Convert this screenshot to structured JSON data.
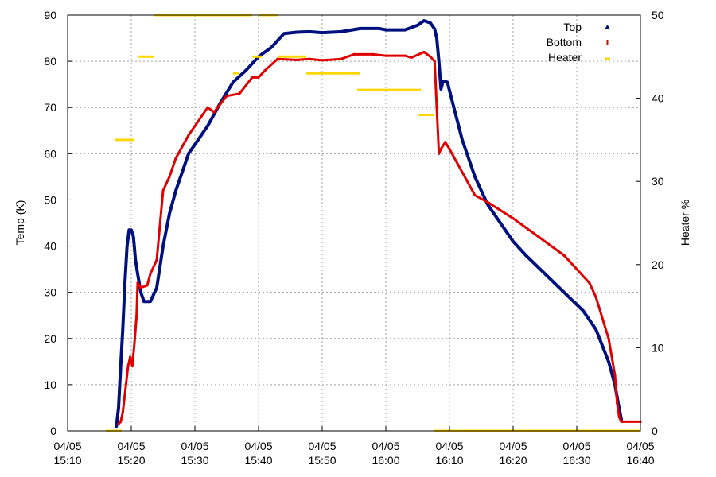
{
  "chart_data": {
    "type": "scatter",
    "title": "",
    "xlabel": "",
    "ylabel": "Temp (K)",
    "y2label": "Heater %",
    "x_range": [
      "15:10",
      "16:40"
    ],
    "ylim": [
      0,
      90
    ],
    "y2lim": [
      0,
      50
    ],
    "grid": true,
    "legend_position": "top-right",
    "x_ticks": [
      {
        "date": "04/05",
        "time": "15:10",
        "t": "15:10"
      },
      {
        "date": "04/05",
        "time": "15:20",
        "t": "15:20"
      },
      {
        "date": "04/05",
        "time": "15:30",
        "t": "15:30"
      },
      {
        "date": "04/05",
        "time": "15:40",
        "t": "15:40"
      },
      {
        "date": "04/05",
        "time": "15:50",
        "t": "15:50"
      },
      {
        "date": "04/05",
        "time": "16:00",
        "t": "16:00"
      },
      {
        "date": "04/05",
        "time": "16:10",
        "t": "16:10"
      },
      {
        "date": "04/05",
        "time": "16:20",
        "t": "16:20"
      },
      {
        "date": "04/05",
        "time": "16:30",
        "t": "16:30"
      },
      {
        "date": "04/05",
        "time": "16:40",
        "t": "16:40"
      }
    ],
    "y_ticks": [
      "0",
      "10",
      "20",
      "30",
      "40",
      "50",
      "60",
      "70",
      "80",
      "90"
    ],
    "y2_ticks": [
      "0",
      "10",
      "20",
      "30",
      "40",
      "50"
    ],
    "series": [
      {
        "name": "Top",
        "color": "#00107e",
        "axis": "y",
        "points": [
          [
            "15:17:40",
            1
          ],
          [
            "15:18:00",
            5
          ],
          [
            "15:18:20",
            14
          ],
          [
            "15:18:40",
            22
          ],
          [
            "15:19:00",
            32
          ],
          [
            "15:19:20",
            40
          ],
          [
            "15:19:40",
            43.5
          ],
          [
            "15:20:00",
            43.5
          ],
          [
            "15:20:20",
            42
          ],
          [
            "15:20:40",
            37
          ],
          [
            "15:21:00",
            34
          ],
          [
            "15:21:30",
            30
          ],
          [
            "15:22:00",
            28
          ],
          [
            "15:23:00",
            28
          ],
          [
            "15:24:00",
            31
          ],
          [
            "15:25:00",
            40
          ],
          [
            "15:26:00",
            47
          ],
          [
            "15:27:00",
            52
          ],
          [
            "15:28:00",
            56
          ],
          [
            "15:29:00",
            60
          ],
          [
            "15:30:00",
            62
          ],
          [
            "15:32:00",
            66
          ],
          [
            "15:34:00",
            71
          ],
          [
            "15:36:00",
            75.5
          ],
          [
            "15:38:00",
            78
          ],
          [
            "15:40:00",
            81
          ],
          [
            "15:42:00",
            83
          ],
          [
            "15:44:00",
            86
          ],
          [
            "15:46:00",
            86.3
          ],
          [
            "15:48:00",
            86.4
          ],
          [
            "15:50:00",
            86.2
          ],
          [
            "15:53:00",
            86.4
          ],
          [
            "15:56:00",
            87.1
          ],
          [
            "15:59:00",
            87.1
          ],
          [
            "16:00:00",
            86.8
          ],
          [
            "16:03:00",
            86.8
          ],
          [
            "16:05:00",
            87.8
          ],
          [
            "16:06:00",
            88.8
          ],
          [
            "16:07:00",
            88.3
          ],
          [
            "16:07:40",
            87
          ],
          [
            "16:08:00",
            85
          ],
          [
            "16:08:20",
            80
          ],
          [
            "16:08:40",
            74
          ],
          [
            "16:09:00",
            75.7
          ],
          [
            "16:09:40",
            75.5
          ],
          [
            "16:10:30",
            71
          ],
          [
            "16:12:00",
            63
          ],
          [
            "16:14:00",
            55
          ],
          [
            "16:16:00",
            49
          ],
          [
            "16:18:00",
            45
          ],
          [
            "16:20:00",
            41
          ],
          [
            "16:22:00",
            38
          ],
          [
            "16:25:00",
            34
          ],
          [
            "16:28:00",
            30
          ],
          [
            "16:31:00",
            26
          ],
          [
            "16:33:00",
            22
          ],
          [
            "16:35:00",
            15
          ],
          [
            "16:36:00",
            10
          ],
          [
            "16:36:30",
            6
          ],
          [
            "16:37:00",
            2.5
          ]
        ]
      },
      {
        "name": "Bottom",
        "color": "#e00000",
        "axis": "y",
        "points": [
          [
            "15:18:00",
            1.5
          ],
          [
            "15:18:20",
            2
          ],
          [
            "15:18:40",
            4
          ],
          [
            "15:19:00",
            8
          ],
          [
            "15:19:30",
            14
          ],
          [
            "15:19:50",
            16
          ],
          [
            "15:20:10",
            14
          ],
          [
            "15:20:30",
            19
          ],
          [
            "15:20:50",
            25
          ],
          [
            "15:21:00",
            32
          ],
          [
            "15:21:30",
            31
          ],
          [
            "15:22:30",
            31.5
          ],
          [
            "15:23:00",
            34
          ],
          [
            "15:24:00",
            37
          ],
          [
            "15:25:00",
            52
          ],
          [
            "15:26:00",
            55
          ],
          [
            "15:27:00",
            59
          ],
          [
            "15:29:00",
            64
          ],
          [
            "15:31:00",
            68
          ],
          [
            "15:32:00",
            70
          ],
          [
            "15:33:00",
            69
          ],
          [
            "15:35:00",
            72.5
          ],
          [
            "15:37:00",
            73
          ],
          [
            "15:39:00",
            76.5
          ],
          [
            "15:40:00",
            76.5
          ],
          [
            "15:41:00",
            78
          ],
          [
            "15:43:00",
            80.5
          ],
          [
            "15:46:00",
            80.3
          ],
          [
            "15:48:00",
            80.5
          ],
          [
            "15:50:00",
            80.2
          ],
          [
            "15:53:00",
            80.5
          ],
          [
            "15:55:00",
            81.5
          ],
          [
            "15:58:00",
            81.5
          ],
          [
            "16:00:00",
            81.2
          ],
          [
            "16:03:00",
            81.2
          ],
          [
            "16:04:00",
            80.8
          ],
          [
            "16:06:00",
            82
          ],
          [
            "16:07:00",
            81
          ],
          [
            "16:07:40",
            80
          ],
          [
            "16:08:00",
            70
          ],
          [
            "16:08:20",
            60
          ],
          [
            "16:08:40",
            61
          ],
          [
            "16:09:20",
            62.5
          ],
          [
            "16:10:00",
            61
          ],
          [
            "16:12:00",
            56
          ],
          [
            "16:14:00",
            51
          ],
          [
            "16:16:00",
            49.5
          ],
          [
            "16:20:00",
            46
          ],
          [
            "16:24:00",
            42
          ],
          [
            "16:28:00",
            38
          ],
          [
            "16:32:00",
            32
          ],
          [
            "16:33:00",
            29
          ],
          [
            "16:35:00",
            20
          ],
          [
            "16:36:00",
            12
          ],
          [
            "16:36:20",
            6
          ],
          [
            "16:36:40",
            3
          ],
          [
            "16:37:00",
            2
          ],
          [
            "16:40:00",
            2
          ]
        ]
      },
      {
        "name": "Heater",
        "color": "#ffd700",
        "axis": "y2",
        "segments": [
          {
            "start": "15:16:00",
            "end": "15:18:30",
            "value": 0
          },
          {
            "start": "15:17:30",
            "end": "15:20:30",
            "value": 35
          },
          {
            "start": "15:21:00",
            "end": "15:23:30",
            "value": 45
          },
          {
            "start": "15:23:30",
            "end": "15:39:00",
            "value": 50
          },
          {
            "start": "15:36:00",
            "end": "15:37:00",
            "value": 43
          },
          {
            "start": "15:39:00",
            "end": "15:40:30",
            "value": 45
          },
          {
            "start": "15:40:00",
            "end": "15:43:00",
            "value": 50
          },
          {
            "start": "15:43:00",
            "end": "15:47:30",
            "value": 45
          },
          {
            "start": "15:47:30",
            "end": "15:56:00",
            "value": 43
          },
          {
            "start": "15:55:30",
            "end": "16:05:30",
            "value": 41
          },
          {
            "start": "16:05:00",
            "end": "16:07:30",
            "value": 38
          },
          {
            "start": "16:07:30",
            "end": "16:40:00",
            "value": 0
          }
        ]
      }
    ]
  }
}
